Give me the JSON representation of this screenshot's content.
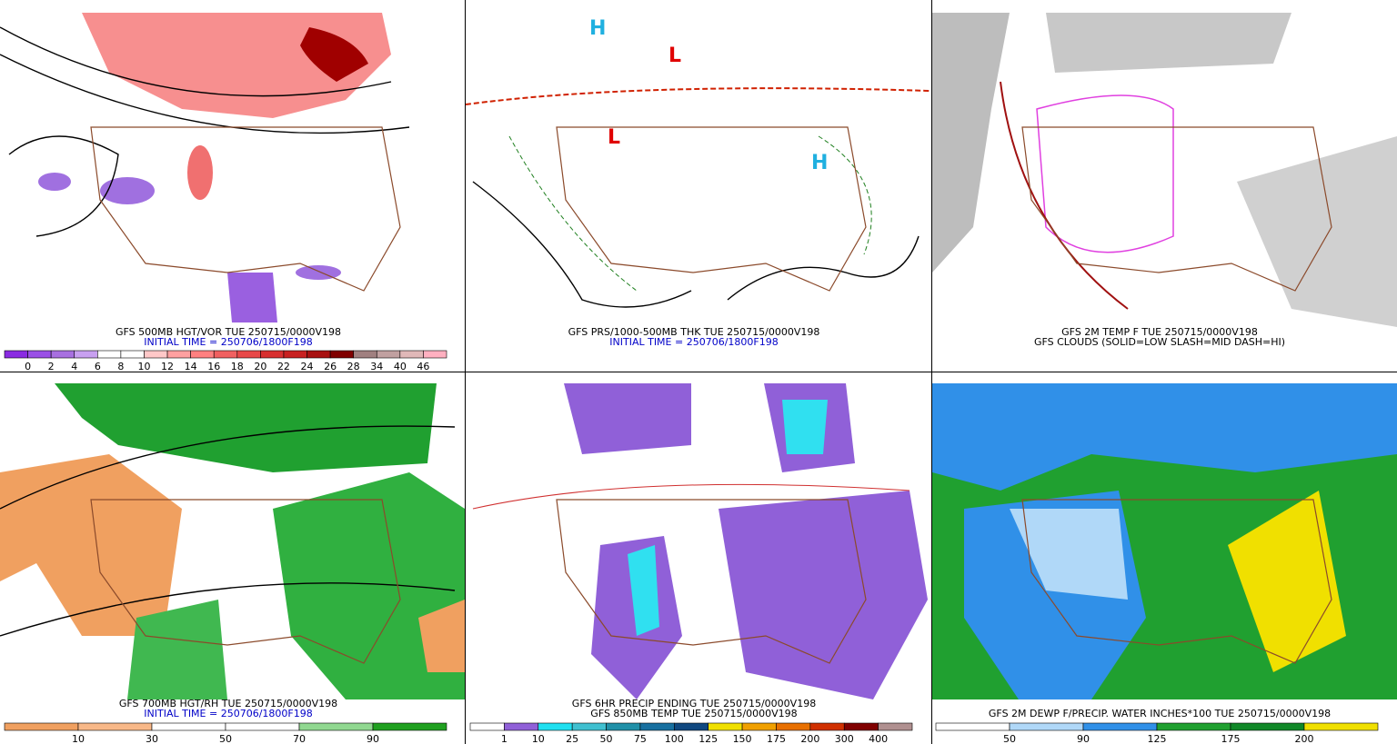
{
  "panels": [
    {
      "captions": [
        {
          "text": "GFS 500MB HGT/VOR TUE 250715/0000V198",
          "color": "#000000"
        },
        {
          "text": "INITIAL TIME = 250706/1800F198",
          "color": "#0000c8"
        }
      ],
      "colorbar": {
        "colors": [
          "#8a2be2",
          "#9a50e6",
          "#a870e0",
          "#c8a0f0",
          "#ffffff",
          "#ffffff",
          "#ffc8c8",
          "#ffa0a0",
          "#ff8080",
          "#f06060",
          "#e84848",
          "#d83030",
          "#c82020",
          "#a81010",
          "#800000",
          "#a08080",
          "#c0a0a0",
          "#e0b8b8",
          "#ffb0c0"
        ],
        "labels": [
          0,
          2,
          4,
          6,
          8,
          10,
          12,
          14,
          16,
          18,
          20,
          22,
          24,
          26,
          28,
          34,
          40,
          46
        ]
      }
    },
    {
      "captions": [
        {
          "text": "GFS PRS/1000-500MB THK TUE 250715/0000V198",
          "color": "#000000"
        },
        {
          "text": "INITIAL TIME = 250706/1800F198",
          "color": "#0000c8"
        }
      ]
    },
    {
      "captions": [
        {
          "text": "GFS 2M TEMP F TUE 250715/0000V198",
          "color": "#000000"
        },
        {
          "text": "GFS CLOUDS (SOLID=LOW SLASH=MID DASH=HI)",
          "color": "#000000"
        }
      ]
    },
    {
      "captions": [
        {
          "text": "GFS 700MB HGT/RH TUE 250715/0000V198",
          "color": "#000000"
        },
        {
          "text": "INITIAL TIME = 250706/1800F198",
          "color": "#0000c8"
        }
      ],
      "colorbar": {
        "colors": [
          "#f0a060",
          "#f8b888",
          "#ffffff",
          "#ffffff",
          "#90d890",
          "#20a020"
        ],
        "labels": [
          10,
          30,
          50,
          70,
          90
        ]
      }
    },
    {
      "captions": [
        {
          "text": "GFS 6HR PRECIP ENDING TUE 250715/0000V198",
          "color": "#000000"
        },
        {
          "text": "GFS 850MB TEMP TUE 250715/0000V198",
          "color": "#000000"
        }
      ],
      "colorbar": {
        "colors": [
          "#ffffff",
          "#9060d8",
          "#20e0f0",
          "#40c0d0",
          "#2090a8",
          "#1870a0",
          "#104880",
          "#f0e000",
          "#f0a000",
          "#e87000",
          "#d03000",
          "#800000",
          "#b09090"
        ],
        "labels": [
          1,
          10,
          25,
          50,
          75,
          100,
          125,
          150,
          175,
          200,
          300,
          400
        ]
      }
    },
    {
      "captions": [
        {
          "text": "GFS 2M DEWP F/PRECIP. WATER INCHES*100 TUE 250715/0000V198",
          "color": "#000000"
        }
      ],
      "colorbar": {
        "colors": [
          "#ffffff",
          "#b0d8f8",
          "#3090e8",
          "#20a030",
          "#108828",
          "#f0e000"
        ],
        "labels": [
          50,
          90,
          125,
          175,
          200
        ]
      }
    }
  ]
}
